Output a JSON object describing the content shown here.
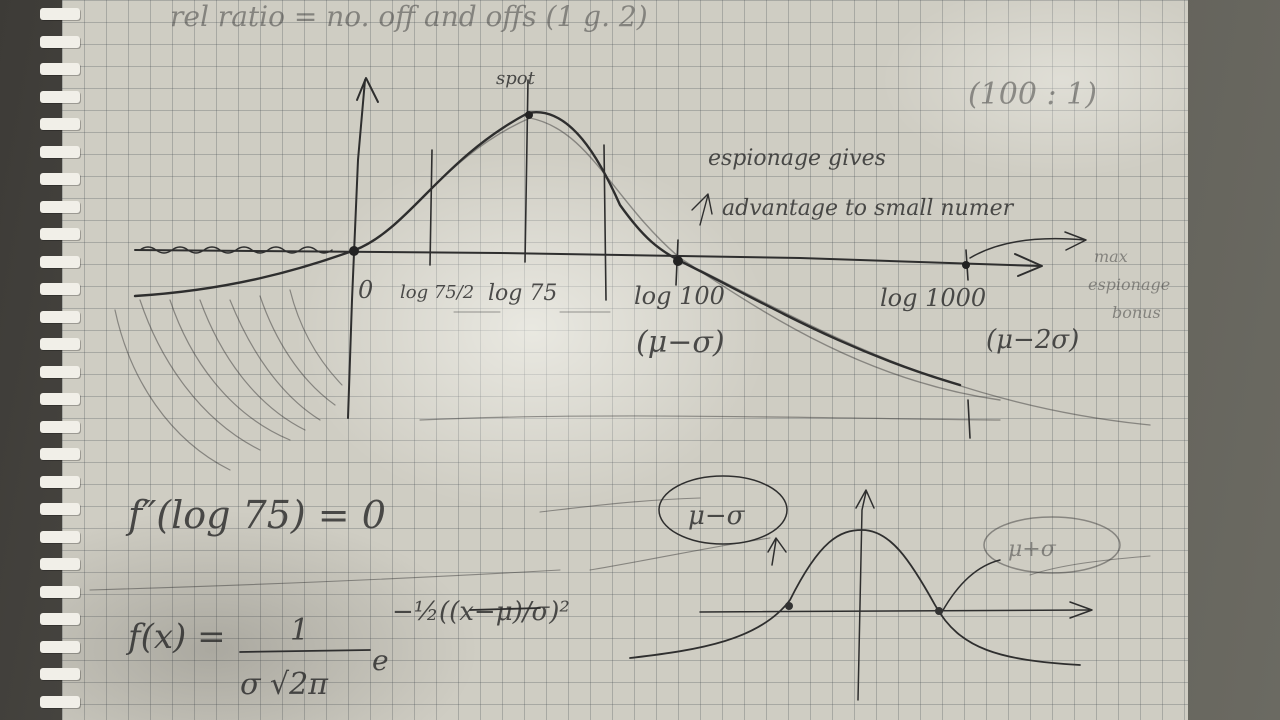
{
  "paper": {
    "top_note": "rel ratio = no. off and offs (1 g. 2)",
    "top_right_note": "(100 : 1)",
    "peak_label": "spot",
    "annotation": "espionage gives advantage to small numer",
    "right_edge_label": "max espionage bonus",
    "tick_labels": {
      "zero": "0",
      "half": "log 75/2",
      "mu": "log 75",
      "sigma": "log 100",
      "two_sigma": "log 1000"
    },
    "sigma_note": "(μ−σ)",
    "two_sigma_note": "(μ−2σ)",
    "derivative_eq": "f″(log 75) = 0",
    "density_lhs": "f(x) =",
    "density_num": "1",
    "density_den": "σ √2π",
    "density_exp": "−½((x−μ)/σ)²",
    "mini_left_label": "μ−σ",
    "mini_right_label": "μ+σ"
  }
}
